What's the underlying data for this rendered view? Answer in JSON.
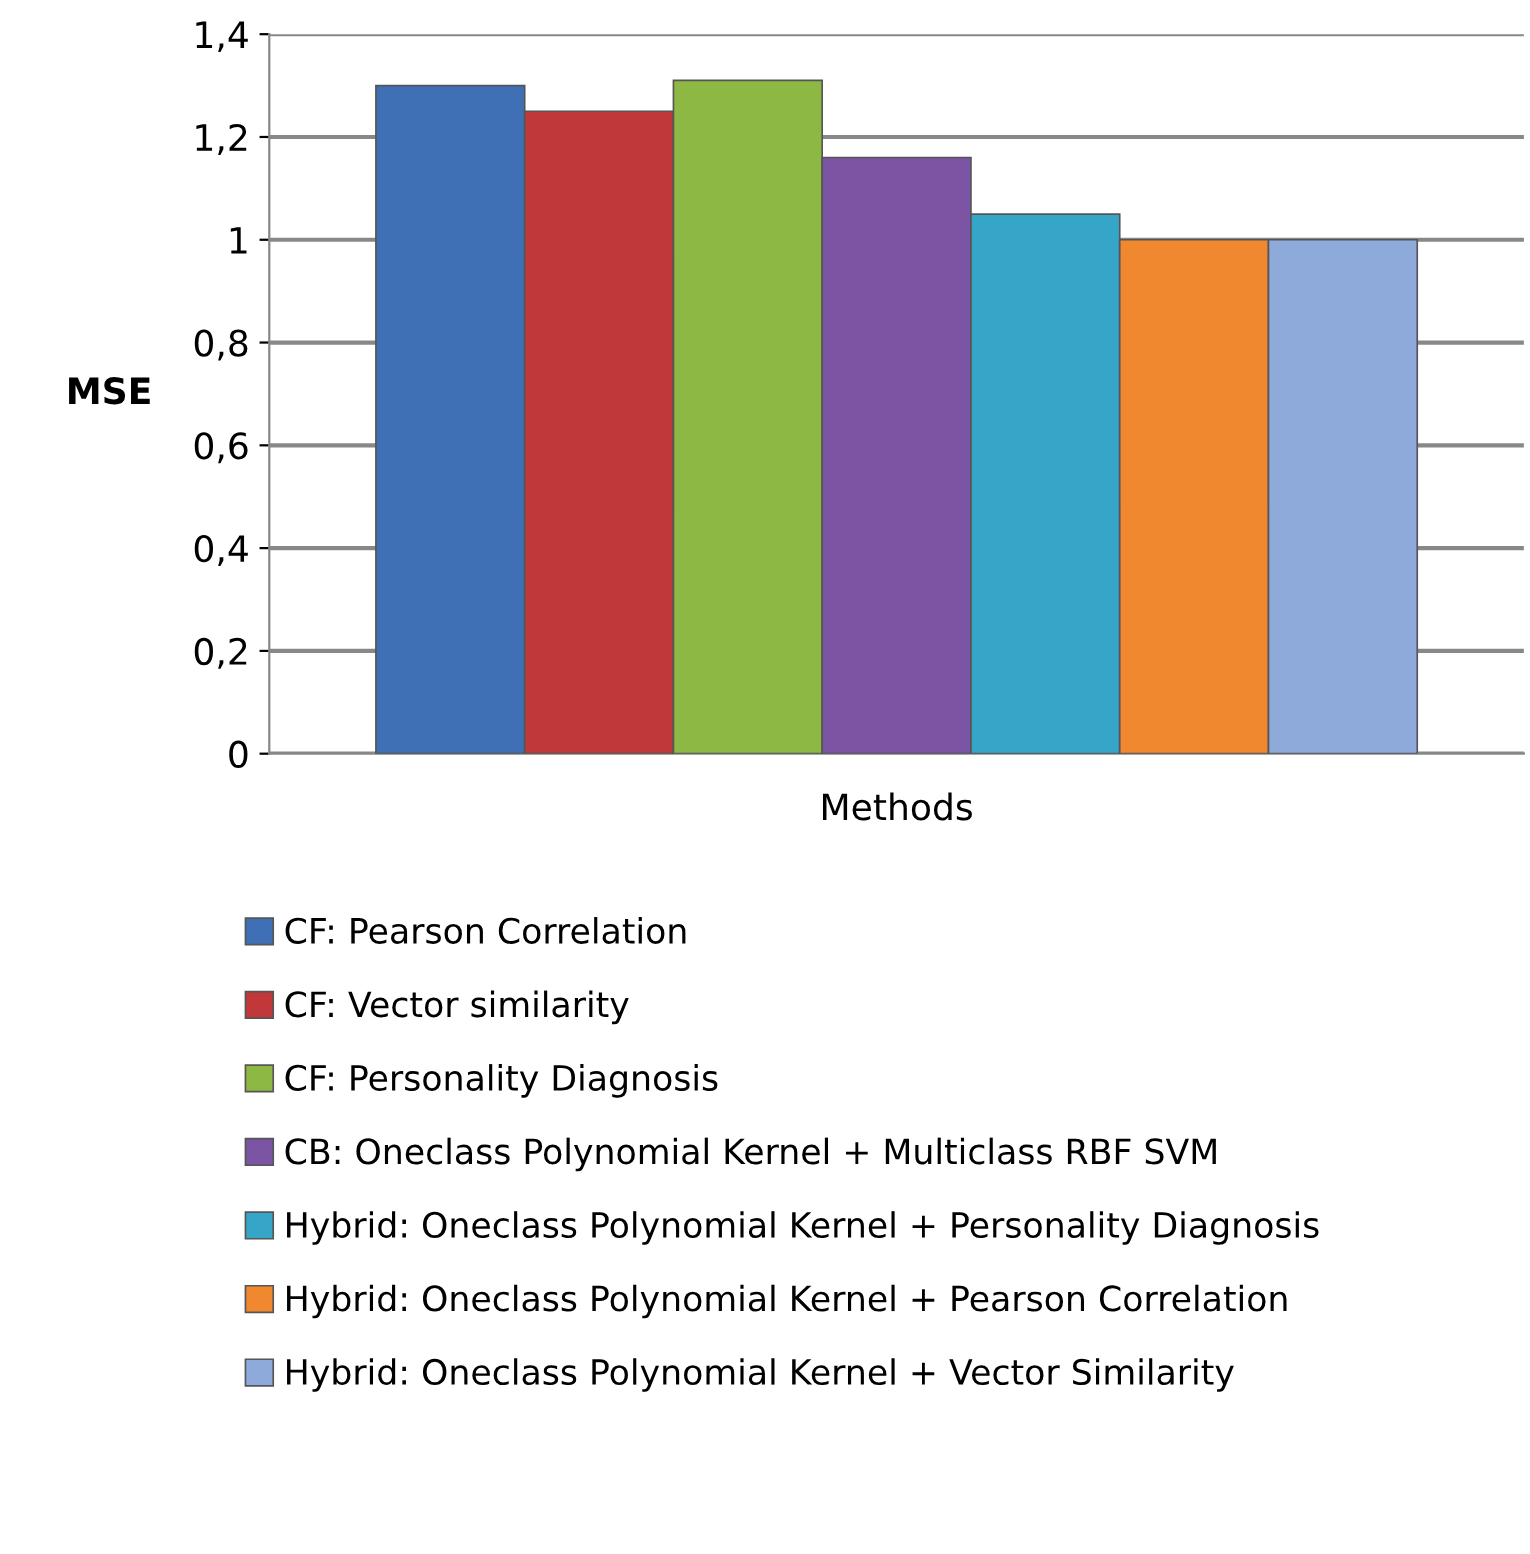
{
  "chart_data": {
    "type": "bar",
    "ylabel": "MSE",
    "categories": [
      "Methods"
    ],
    "series": [
      {
        "name": "CF: Pearson Correlation",
        "color": "#3f6fb5",
        "values": [
          1.3
        ]
      },
      {
        "name": "CF: Vector similarity",
        "color": "#c0383a",
        "values": [
          1.25
        ]
      },
      {
        "name": "CF: Personality Diagnosis",
        "color": "#8db843",
        "values": [
          1.31
        ]
      },
      {
        "name": "CB: Oneclass Polynomial Kernel + Multiclass RBF SVM",
        "color": "#7b55a3",
        "values": [
          1.16
        ]
      },
      {
        "name": "Hybrid: Oneclass Polynomial Kernel + Personality Diagnosis",
        "color": "#35a6c8",
        "values": [
          1.05
        ]
      },
      {
        "name": "Hybrid: Oneclass Polynomial Kernel + Pearson Correlation",
        "color": "#f08830",
        "values": [
          1.0
        ]
      },
      {
        "name": "Hybrid: Oneclass Polynomial Kernel + Vector Similarity",
        "color": "#8eaadb",
        "values": [
          1.0
        ]
      }
    ],
    "ylim": [
      0,
      1.4
    ],
    "yticks": [
      0,
      {
        "value": 0.2,
        "label": "0,2"
      },
      {
        "value": 0.4,
        "label": "0,4"
      },
      {
        "value": 0.6,
        "label": "0,6"
      },
      {
        "value": 0.8,
        "label": "0,8"
      },
      1,
      {
        "value": 1.2,
        "label": "1,2"
      },
      {
        "value": 1.4,
        "label": "1,4"
      }
    ],
    "grid": "y",
    "legend": "bottom"
  }
}
